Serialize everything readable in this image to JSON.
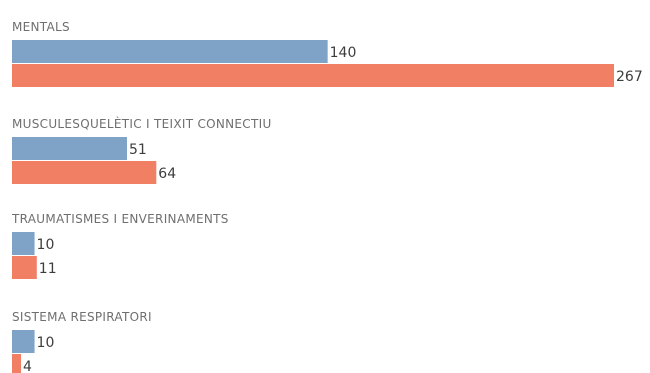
{
  "chart_data": {
    "type": "bar",
    "orientation": "horizontal",
    "grid": false,
    "legend": "none",
    "xlim": [
      0,
      267
    ],
    "colors": [
      "#7ea3c6",
      "#f07f63"
    ],
    "categories": [
      "MENTALS",
      "MUSCULESQUELÈTIC I TEIXIT CONNECTIU",
      "TRAUMATISMES I ENVERINAMENTS",
      "SISTEMA RESPIRATORI"
    ],
    "series": [
      {
        "values": [
          140,
          51,
          10,
          10
        ]
      },
      {
        "values": [
          267,
          64,
          11,
          4
        ]
      }
    ]
  }
}
